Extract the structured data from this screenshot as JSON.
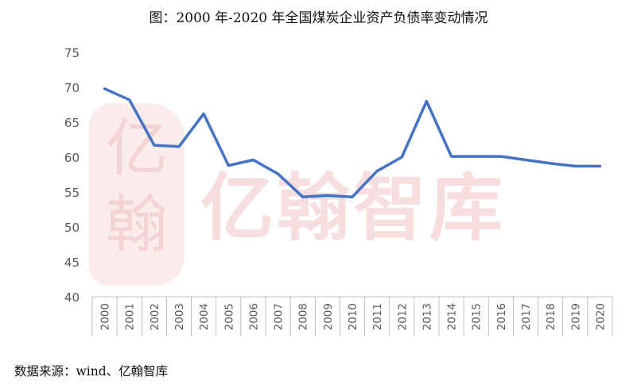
{
  "title": "图：2000 年-2020 年全国煤炭企业资产负债率变动情况",
  "source": "数据来源：wind、亿翰智库",
  "watermark": {
    "text": "亿翰智库",
    "seal": "亿翰"
  },
  "colors": {
    "line": "#4472c4",
    "axis": "#bfbfbf",
    "watermark": "#f7dede",
    "text": "#595959"
  },
  "chart_data": {
    "type": "line",
    "title": "图：2000 年-2020 年全国煤炭企业资产负债率变动情况",
    "xlabel": "",
    "ylabel": "",
    "categories": [
      "2000",
      "2001",
      "2002",
      "2003",
      "2004",
      "2005",
      "2006",
      "2007",
      "2008",
      "2009",
      "2010",
      "2011",
      "2012",
      "2013",
      "2014",
      "2015",
      "2016",
      "2017",
      "2018",
      "2019",
      "2020"
    ],
    "series": [
      {
        "values": [
          69.8,
          68.2,
          61.7,
          61.5,
          66.2,
          58.8,
          59.6,
          57.6,
          54.3,
          54.5,
          54.3,
          58.0,
          60.0,
          68.0,
          60.1,
          60.1,
          60.1,
          59.6,
          59.1,
          58.7,
          58.7
        ]
      }
    ],
    "ylim": [
      40,
      75
    ],
    "yticks": [
      40,
      45,
      50,
      55,
      60,
      65,
      70,
      75
    ],
    "grid": false,
    "legend": "none"
  }
}
